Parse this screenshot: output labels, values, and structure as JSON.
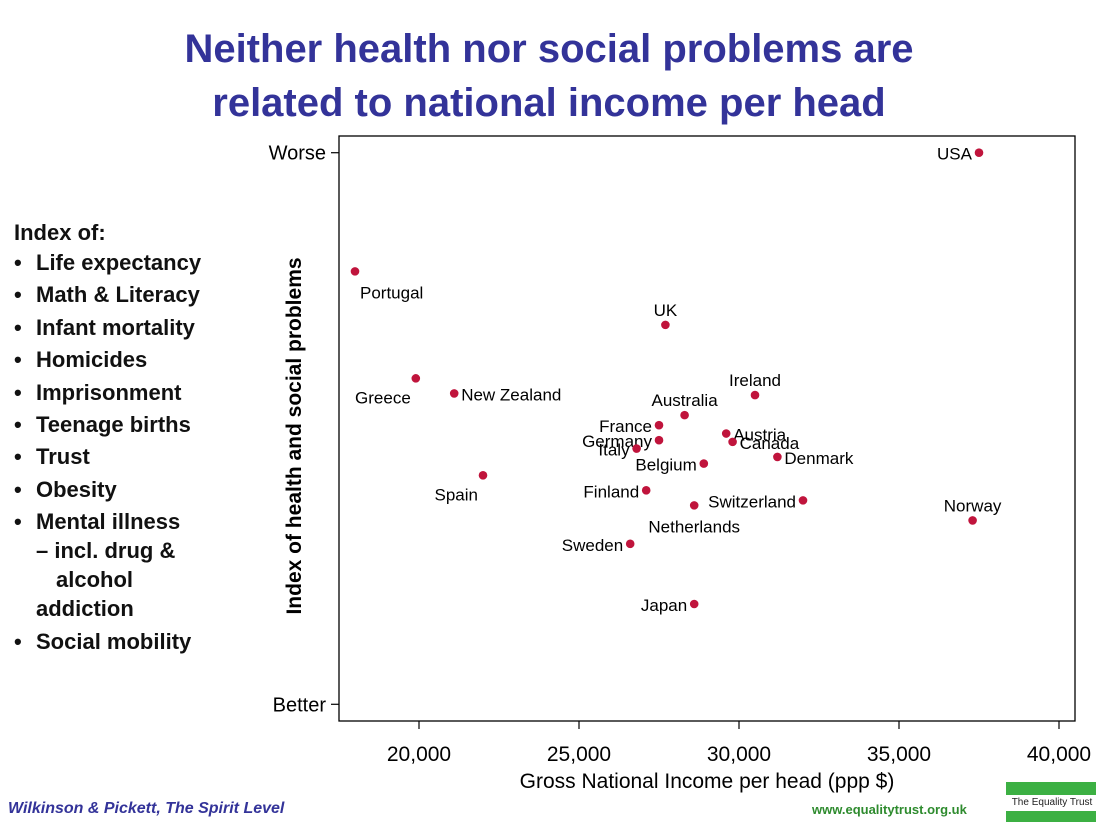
{
  "title": {
    "line1": "Neither health nor social problems are",
    "line2": "related to national income per head"
  },
  "index_panel": {
    "heading": "Index of:",
    "items": [
      "Life expectancy",
      "Math & Literacy",
      "Infant mortality",
      "Homicides",
      "Imprisonment",
      "Teenage births",
      "Trust",
      "Obesity",
      "Mental illness",
      "Social mobility"
    ],
    "mental_illness_cont1": "– incl. drug &",
    "mental_illness_cont2": "alcohol",
    "mental_illness_cont3": "addiction"
  },
  "footer": {
    "source": "Wilkinson & Pickett, The Spirit Level",
    "url": "www.equalitytrust.org.uk",
    "logo_text": "The Equality Trust"
  },
  "colors": {
    "title": "#333399",
    "point": "#c0143c",
    "footer_url": "#2e8b2e",
    "logo": "#3cb043"
  },
  "chart_data": {
    "type": "scatter",
    "xlabel": "Gross National Income per head (ppp $)",
    "ylabel": "Index of health and social problems",
    "xlim": [
      17500,
      40500
    ],
    "x_ticks": [
      20000,
      25000,
      30000,
      35000,
      40000
    ],
    "x_tick_labels": [
      "20,000",
      "25,000",
      "30,000",
      "35,000",
      "40,000"
    ],
    "ylim": [
      -1.0,
      2.5
    ],
    "y_ticks": [
      {
        "value": -0.9,
        "label": "Better"
      },
      {
        "value": 2.4,
        "label": "Worse"
      }
    ],
    "grid": false,
    "points": [
      {
        "name": "USA",
        "x": 37500,
        "y": 2.4,
        "label_pos": "left"
      },
      {
        "name": "Portugal",
        "x": 18000,
        "y": 1.69,
        "label_pos": "below-right"
      },
      {
        "name": "UK",
        "x": 27700,
        "y": 1.37,
        "label_pos": "above"
      },
      {
        "name": "Greece",
        "x": 19900,
        "y": 1.05,
        "label_pos": "below-left"
      },
      {
        "name": "New Zealand",
        "x": 21100,
        "y": 0.96,
        "label_pos": "right"
      },
      {
        "name": "Ireland",
        "x": 30500,
        "y": 0.95,
        "label_pos": "above"
      },
      {
        "name": "Australia",
        "x": 28300,
        "y": 0.83,
        "label_pos": "above"
      },
      {
        "name": "France",
        "x": 27500,
        "y": 0.77,
        "label_pos": "left"
      },
      {
        "name": "Austria",
        "x": 29600,
        "y": 0.72,
        "label_pos": "right"
      },
      {
        "name": "Germany",
        "x": 27500,
        "y": 0.68,
        "label_pos": "left"
      },
      {
        "name": "Canada",
        "x": 29800,
        "y": 0.67,
        "label_pos": "right"
      },
      {
        "name": "Italy",
        "x": 26800,
        "y": 0.63,
        "label_pos": "left"
      },
      {
        "name": "Denmark",
        "x": 31200,
        "y": 0.58,
        "label_pos": "right"
      },
      {
        "name": "Belgium",
        "x": 28900,
        "y": 0.54,
        "label_pos": "left"
      },
      {
        "name": "Spain",
        "x": 22000,
        "y": 0.47,
        "label_pos": "below-left"
      },
      {
        "name": "Finland",
        "x": 27100,
        "y": 0.38,
        "label_pos": "left"
      },
      {
        "name": "Switzerland",
        "x": 32000,
        "y": 0.32,
        "label_pos": "left"
      },
      {
        "name": "Netherlands",
        "x": 28600,
        "y": 0.29,
        "label_pos": "below"
      },
      {
        "name": "Norway",
        "x": 37300,
        "y": 0.2,
        "label_pos": "above"
      },
      {
        "name": "Sweden",
        "x": 26600,
        "y": 0.06,
        "label_pos": "left"
      },
      {
        "name": "Japan",
        "x": 28600,
        "y": -0.3,
        "label_pos": "left"
      }
    ]
  }
}
